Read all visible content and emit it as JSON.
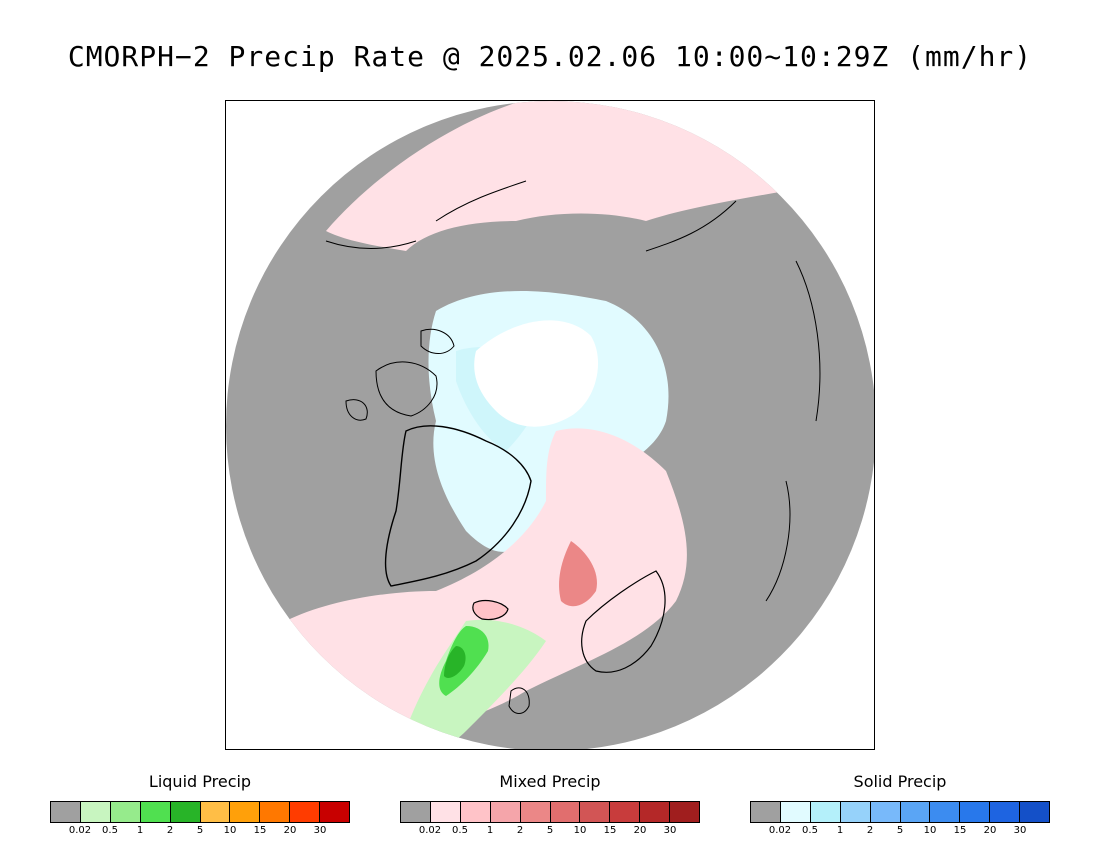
{
  "title": "CMORPH−2 Precip Rate @ 2025.02.06 10:00~10:29Z (mm/hr)",
  "legends": [
    {
      "title": "Liquid Precip",
      "colors": [
        "#a0a0a0",
        "#c8f5c0",
        "#96eb8c",
        "#50e050",
        "#28b428",
        "#ffbe46",
        "#ffa00a",
        "#ff7800",
        "#ff3c00",
        "#c80000"
      ],
      "ticks": [
        "0.02",
        "0.5",
        "1",
        "2",
        "5",
        "10",
        "15",
        "20",
        "30"
      ]
    },
    {
      "title": "Mixed Precip",
      "colors": [
        "#a0a0a0",
        "#ffe1e6",
        "#ffc3c8",
        "#f5a5aa",
        "#eb8787",
        "#e16e6e",
        "#d25555",
        "#c83c3c",
        "#b42828",
        "#a01e1e"
      ],
      "ticks": [
        "0.02",
        "0.5",
        "1",
        "2",
        "5",
        "10",
        "15",
        "20",
        "30"
      ]
    },
    {
      "title": "Solid Precip",
      "colors": [
        "#a0a0a0",
        "#e1fbff",
        "#b4f0fa",
        "#96d2fa",
        "#78b9fa",
        "#5aa5f5",
        "#3c8cf0",
        "#2878eb",
        "#1e64e1",
        "#1450c8"
      ],
      "ticks": [
        "0.02",
        "0.5",
        "1",
        "2",
        "5",
        "10",
        "15",
        "20",
        "30"
      ]
    }
  ]
}
